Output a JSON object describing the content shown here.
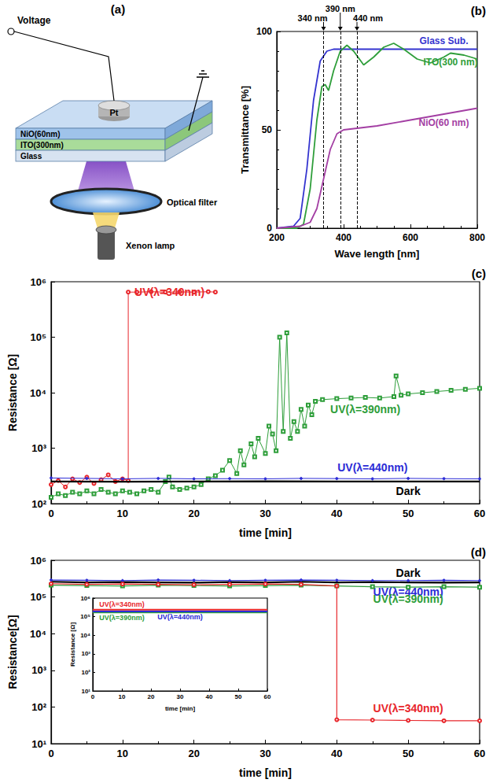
{
  "diagram": {
    "title": "(a)",
    "labels": {
      "voltage": "Voltage",
      "electrode": "Pt",
      "layers": [
        "NiO(60nm)",
        "ITO(300nm)",
        "Glass"
      ],
      "filter": "Optical filter",
      "lamp": "Xenon lamp"
    }
  },
  "chart_data": [
    {
      "type": "line",
      "title": "(b)",
      "x_label": "Wave length [nm]",
      "y_label": "Transmittance [%]",
      "xlim": [
        200,
        800
      ],
      "xticks": [
        200,
        400,
        600,
        800
      ],
      "ylim": [
        0,
        100
      ],
      "yticks": [
        0,
        50,
        100
      ],
      "grid": false,
      "annotations": [
        {
          "x": 340,
          "label": "340 nm"
        },
        {
          "x": 390,
          "label": "390 nm"
        },
        {
          "x": 440,
          "label": "440 nm"
        }
      ],
      "series": [
        {
          "name": "Glass Sub.",
          "color": "#3434cf",
          "marker": "none",
          "x": [
            200,
            250,
            270,
            290,
            310,
            330,
            350,
            370,
            400,
            500,
            600,
            700,
            800
          ],
          "values": [
            0,
            1,
            5,
            30,
            65,
            85,
            90,
            91,
            91,
            91,
            91,
            91,
            91
          ]
        },
        {
          "name": "ITO(300 nm)",
          "color": "#2e9e3a",
          "marker": "none",
          "x": [
            200,
            260,
            280,
            300,
            320,
            335,
            345,
            355,
            370,
            390,
            410,
            430,
            460,
            490,
            520,
            550,
            580,
            620,
            660,
            700,
            720,
            760,
            800
          ],
          "values": [
            0,
            0,
            2,
            20,
            55,
            72,
            73,
            70,
            80,
            90,
            93,
            90,
            83,
            87,
            92,
            94,
            91,
            86,
            84,
            87,
            89,
            88,
            86
          ]
        },
        {
          "name": "NiO(60 nm)",
          "color": "#a33ea3",
          "marker": "none",
          "x": [
            200,
            270,
            300,
            320,
            340,
            360,
            380,
            400,
            450,
            500,
            600,
            700,
            800
          ],
          "values": [
            0,
            1,
            3,
            10,
            25,
            40,
            48,
            50,
            51,
            52,
            55,
            58,
            61
          ]
        }
      ]
    },
    {
      "type": "line",
      "title": "(c)",
      "x_label": "time [min]",
      "y_label": "Resistance [Ω]",
      "log": "y",
      "xlim": [
        0,
        60
      ],
      "xticks": [
        0,
        10,
        20,
        30,
        40,
        50,
        60
      ],
      "ylim": [
        100,
        1000000
      ],
      "yticks": [
        {
          "value": 100,
          "label": "10²"
        },
        {
          "value": 1000,
          "label": "10³"
        },
        {
          "value": 10000,
          "label": "10⁴"
        },
        {
          "value": 100000,
          "label": "10⁵"
        },
        {
          "value": 1000000,
          "label": "10⁶"
        }
      ],
      "grid": false,
      "series": [
        {
          "name": "UV(λ=340nm)",
          "color": "#e8262b",
          "marker": "open_circle",
          "x": [
            0,
            1,
            2,
            3,
            4,
            5,
            6,
            7,
            8,
            9,
            10,
            10.8,
            10.8,
            12,
            14,
            16,
            18,
            20,
            22,
            23
          ],
          "values": [
            220,
            260,
            200,
            280,
            240,
            300,
            230,
            270,
            330,
            250,
            280,
            260,
            650000,
            650000,
            660000,
            650000,
            655000,
            650000,
            660000,
            650000
          ]
        },
        {
          "name": "UV(λ=390nm)",
          "color": "#2e9e3a",
          "marker": "open_square",
          "x": [
            0,
            1,
            2,
            3,
            4,
            5,
            6,
            7,
            8,
            9,
            10,
            11,
            12,
            13,
            14,
            15,
            16,
            16.5,
            17,
            18,
            19,
            20,
            21,
            22,
            23,
            24,
            25,
            26,
            26.5,
            27,
            28,
            28.5,
            29,
            30,
            30.5,
            31,
            31.5,
            32,
            32.5,
            33,
            33.5,
            34,
            34.5,
            35,
            35.5,
            36,
            36.5,
            37,
            38,
            40,
            42,
            44,
            46,
            48,
            48.3,
            49,
            50,
            52,
            54,
            56,
            58,
            60
          ],
          "values": [
            130,
            150,
            140,
            160,
            150,
            170,
            150,
            180,
            160,
            150,
            170,
            160,
            150,
            170,
            180,
            160,
            250,
            300,
            200,
            180,
            190,
            200,
            220,
            280,
            320,
            400,
            600,
            350,
            900,
            500,
            1200,
            700,
            1500,
            800,
            2500,
            1800,
            900,
            100000,
            2000,
            120000,
            1500,
            3000,
            2000,
            5000,
            2500,
            6000,
            4000,
            7000,
            7500,
            7800,
            8000,
            8200,
            8000,
            8500,
            20000,
            9000,
            9500,
            10000,
            10500,
            11000,
            11500,
            12000
          ]
        },
        {
          "name": "UV(λ=440nm)",
          "color": "#2b2bd6",
          "marker": "dot",
          "x": [
            0,
            5,
            10,
            15,
            20,
            25,
            30,
            35,
            40,
            45,
            50,
            55,
            60
          ],
          "values": [
            290,
            285,
            280,
            285,
            280,
            282,
            280,
            285,
            283,
            280,
            285,
            282,
            280
          ]
        },
        {
          "name": "Dark",
          "color": "#000000",
          "marker": "none",
          "x": [
            0,
            10,
            20,
            30,
            40,
            50,
            60
          ],
          "values": [
            250,
            248,
            250,
            252,
            250,
            250,
            250
          ]
        }
      ]
    },
    {
      "type": "line",
      "title": "(d)",
      "x_label": "time [min]",
      "y_label": "Resistance[Ω]",
      "log": "y",
      "xlim": [
        0,
        60
      ],
      "xticks": [
        0,
        10,
        20,
        30,
        40,
        50,
        60
      ],
      "ylim": [
        10,
        1000000
      ],
      "yticks": [
        {
          "value": 10,
          "label": "10¹"
        },
        {
          "value": 100,
          "label": "10²"
        },
        {
          "value": 1000,
          "label": "10³"
        },
        {
          "value": 10000,
          "label": "10⁴"
        },
        {
          "value": 100000,
          "label": "10⁵"
        },
        {
          "value": 1000000,
          "label": "10⁶"
        }
      ],
      "grid": false,
      "series": [
        {
          "name": "Dark",
          "color": "#000000",
          "marker": "none",
          "x": [
            0,
            5,
            10,
            15,
            20,
            25,
            30,
            35,
            40,
            45,
            50,
            55,
            60
          ],
          "values": [
            260000,
            250000,
            255000,
            250000,
            245000,
            255000,
            250000,
            260000,
            250000,
            255000,
            250000,
            245000,
            250000
          ]
        },
        {
          "name": "UV(λ=440nm)",
          "color": "#2b2bd6",
          "marker": "dot",
          "x": [
            0,
            5,
            10,
            15,
            20,
            25,
            30,
            35,
            40,
            45,
            50,
            55,
            60
          ],
          "values": [
            290000,
            285000,
            280000,
            290000,
            285000,
            280000,
            285000,
            290000,
            285000,
            280000,
            280000,
            285000,
            280000
          ]
        },
        {
          "name": "UV(λ=390nm)",
          "color": "#2e9e3a",
          "marker": "open_square",
          "x": [
            0,
            5,
            10,
            15,
            20,
            25,
            30,
            35,
            40,
            45,
            50,
            55,
            60
          ],
          "values": [
            210000,
            205000,
            200000,
            210000,
            205000,
            200000,
            205000,
            210000,
            200000,
            190000,
            185000,
            190000,
            185000
          ]
        },
        {
          "name": "UV(λ=340nm)",
          "color": "#e8262b",
          "marker": "open_circle",
          "x": [
            0,
            5,
            10,
            15,
            20,
            25,
            30,
            35,
            40,
            40,
            45,
            50,
            55,
            60
          ],
          "values": [
            230000,
            220000,
            225000,
            220000,
            215000,
            220000,
            225000,
            220000,
            200000,
            45,
            44,
            43,
            42,
            42
          ]
        }
      ]
    },
    {
      "type": "line",
      "x_label": "time [min]",
      "y_label": "Resistance [Ω]",
      "log": "y",
      "xlim": [
        0,
        60
      ],
      "xticks": [
        0,
        10,
        20,
        30,
        40,
        50,
        60
      ],
      "ylim": [
        10,
        1000000
      ],
      "yticks": [
        {
          "value": 10,
          "label": "10¹"
        },
        {
          "value": 100,
          "label": "10²"
        },
        {
          "value": 1000,
          "label": "10³"
        },
        {
          "value": 10000,
          "label": "10⁴"
        },
        {
          "value": 100000,
          "label": "10⁵"
        },
        {
          "value": 1000000,
          "label": "10⁶"
        }
      ],
      "grid": false,
      "series": [
        {
          "name": "UV(λ=340nm)",
          "color": "#e8262b",
          "marker": "none",
          "x": [
            0,
            10,
            20,
            30,
            40,
            50,
            60
          ],
          "values": [
            240000,
            240000,
            240000,
            240000,
            240000,
            240000,
            240000
          ]
        },
        {
          "name": "UV(λ=390nm)",
          "color": "#2e9e3a",
          "marker": "none",
          "x": [
            0,
            10,
            20,
            30,
            40,
            50,
            60
          ],
          "values": [
            170000,
            170000,
            170000,
            170000,
            170000,
            170000,
            170000
          ]
        },
        {
          "name": "UV(λ=440nm)",
          "color": "#2b2bd6",
          "marker": "none",
          "x": [
            0,
            10,
            20,
            30,
            40,
            50,
            60
          ],
          "values": [
            190000,
            190000,
            190000,
            190000,
            190000,
            190000,
            190000
          ]
        }
      ]
    }
  ]
}
